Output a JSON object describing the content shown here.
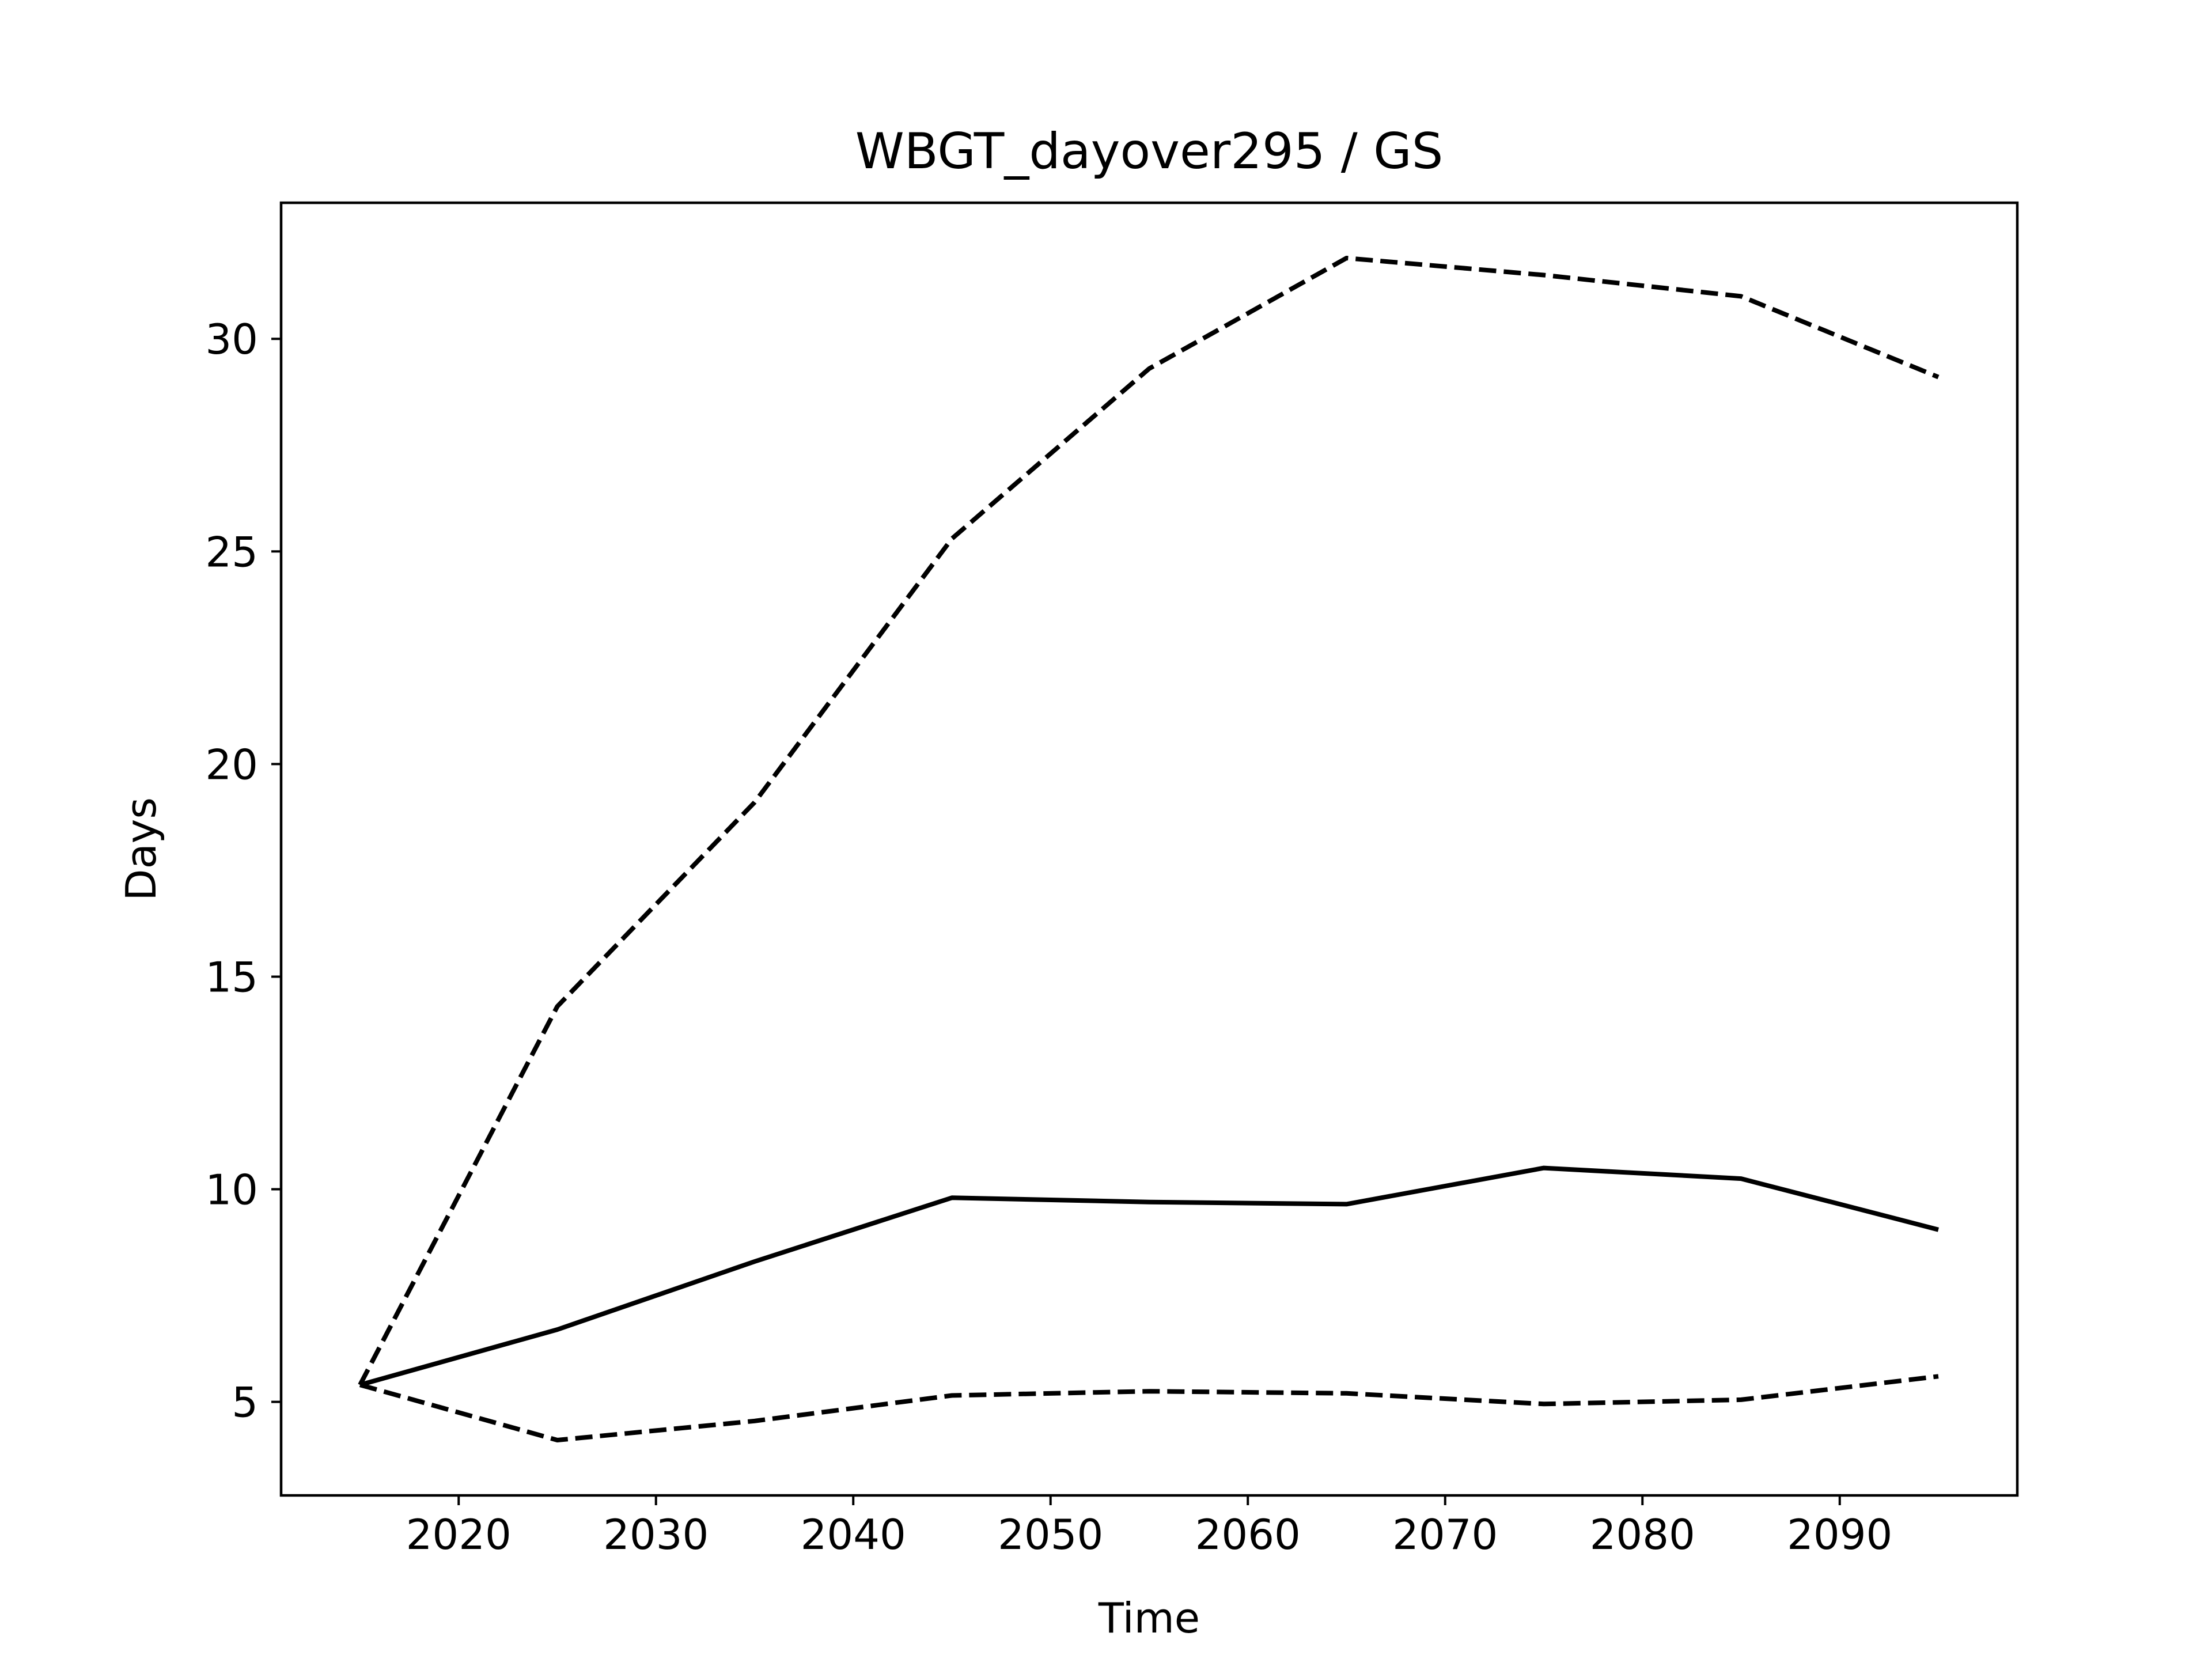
{
  "chart_data": {
    "type": "line",
    "title": "WBGT_dayover295 / GS",
    "xlabel": "Time",
    "ylabel": "Days",
    "xlim": [
      2011.0,
      2099.0
    ],
    "ylim": [
      2.8,
      33.2
    ],
    "xticks": [
      2020,
      2030,
      2040,
      2050,
      2060,
      2070,
      2080,
      2090
    ],
    "yticks": [
      5,
      10,
      15,
      20,
      25,
      30
    ],
    "grid": false,
    "legend": "none",
    "x": [
      2015,
      2025,
      2035,
      2045,
      2055,
      2065,
      2075,
      2085,
      2095
    ],
    "series": [
      {
        "style": "dashed",
        "color": "#000000",
        "values": [
          5.4,
          14.3,
          19.1,
          25.3,
          29.3,
          31.9,
          31.5,
          31.0,
          29.1
        ]
      },
      {
        "style": "solid",
        "color": "#000000",
        "values": [
          5.4,
          6.7,
          8.3,
          9.8,
          9.7,
          9.65,
          10.5,
          10.25,
          9.05
        ]
      },
      {
        "style": "dashed",
        "color": "#000000",
        "values": [
          5.4,
          4.1,
          4.55,
          5.15,
          5.25,
          5.2,
          4.95,
          5.05,
          5.6
        ]
      }
    ]
  }
}
